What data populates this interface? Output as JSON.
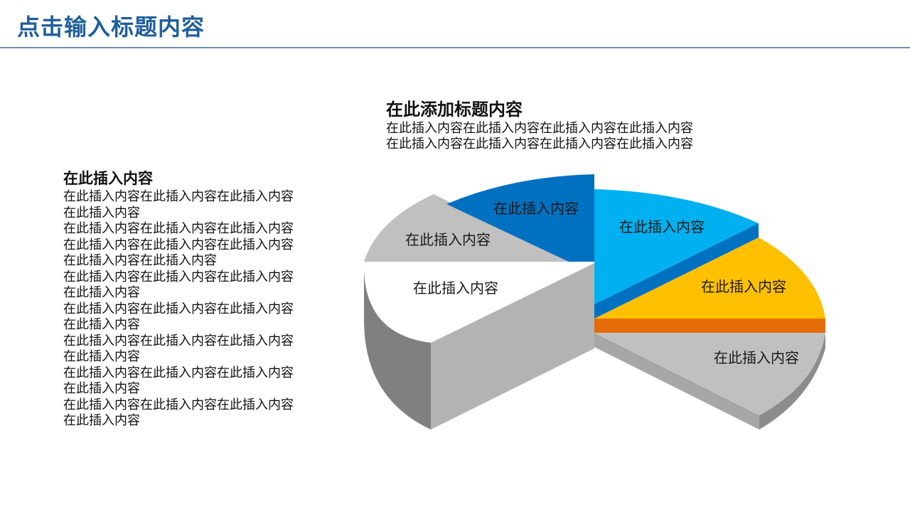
{
  "slide": {
    "title": "点击输入标题内容"
  },
  "left_panel": {
    "heading": "在此插入内容",
    "lines": [
      "在此插入内容在此插入内容在此插入内容",
      "在此插入内容",
      "在此插入内容在此插入内容在此插入内容",
      "在此插入内容在此插入内容在此插入内容",
      "在此插入内容在此插入内容",
      "在此插入内容在此插入内容在此插入内容",
      "在此插入内容",
      "在此插入内容在此插入内容在此插入内容",
      "在此插入内容",
      "在此插入内容在此插入内容在此插入内容",
      "在此插入内容",
      "在此插入内容在此插入内容在此插入内容",
      "在此插入内容",
      "在此插入内容在此插入内容在此插入内容",
      "在此插入内容"
    ]
  },
  "top_panel": {
    "heading": "在此添加标题内容",
    "lines": [
      "在此插入内容在此插入内容在此插入内容在此插入内容",
      "在此插入内容在此插入内容在此插入内容在此插入内容"
    ]
  },
  "pie": {
    "segments": [
      {
        "label": "在此插入内容",
        "color": "#0070c0"
      },
      {
        "label": "在此插入内容",
        "color": "#00b0f0"
      },
      {
        "label": "在此插入内容",
        "color": "#ffc000"
      },
      {
        "label": "在此插入内容",
        "color": "#c0c0c0"
      },
      {
        "label": "在此插入内容",
        "color": "#ffffff"
      },
      {
        "label": "在此插入内容",
        "color": "#c0c0c0"
      }
    ]
  }
}
